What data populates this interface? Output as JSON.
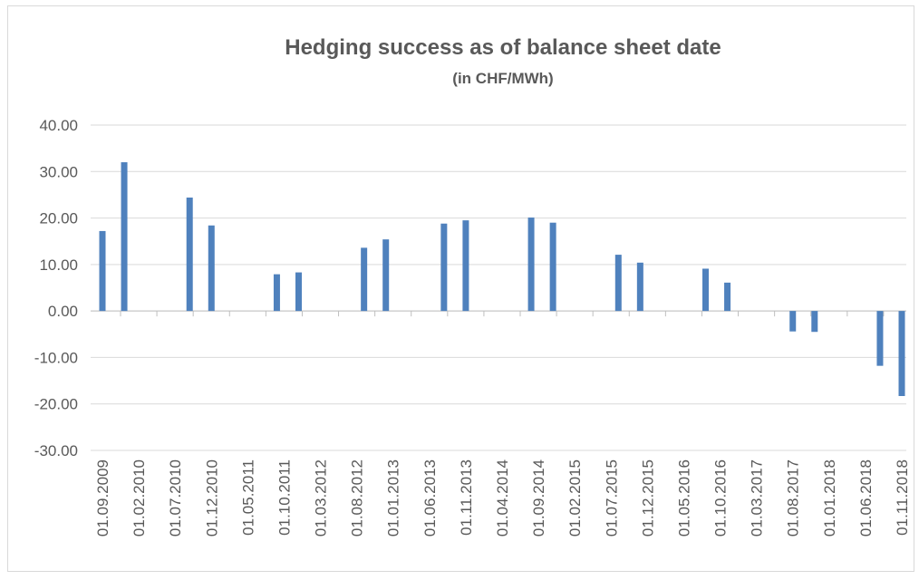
{
  "chart_data": {
    "type": "bar",
    "title": "Hedging success as of balance sheet date",
    "subtitle": "(in CHF/MWh)",
    "x": [
      "01.09.2009",
      "01.12.2009",
      "01.09.2010",
      "01.12.2010",
      "01.09.2011",
      "01.12.2011",
      "01.09.2012",
      "01.12.2012",
      "01.08.2013",
      "01.11.2013",
      "01.08.2014",
      "01.11.2014",
      "01.08.2015",
      "01.11.2015",
      "01.08.2016",
      "01.11.2016",
      "01.08.2017",
      "01.11.2017",
      "01.08.2018",
      "01.11.2018"
    ],
    "values": [
      17.2,
      32.0,
      24.4,
      18.4,
      7.9,
      8.3,
      13.6,
      15.4,
      18.8,
      19.5,
      20.1,
      19.0,
      12.1,
      10.4,
      9.1,
      6.1,
      -4.4,
      -4.5,
      -11.8,
      -18.3
    ],
    "color": "#4f81bd",
    "xlim": [
      "01.09.2009",
      "01.11.2018"
    ],
    "xticks": [
      "01.09.2009",
      "01.02.2010",
      "01.07.2010",
      "01.12.2010",
      "01.05.2011",
      "01.10.2011",
      "01.03.2012",
      "01.08.2012",
      "01.01.2013",
      "01.06.2013",
      "01.11.2013",
      "01.04.2014",
      "01.09.2014",
      "01.02.2015",
      "01.07.2015",
      "01.12.2015",
      "01.05.2016",
      "01.10.2016",
      "01.03.2017",
      "01.08.2017",
      "01.01.2018",
      "01.06.2018",
      "01.11.2018"
    ],
    "ylim": [
      -30,
      40
    ],
    "yticks": [
      {
        "value": -30,
        "label": "-30.00"
      },
      {
        "value": -20,
        "label": "-20.00"
      },
      {
        "value": -10,
        "label": "-10.00"
      },
      {
        "value": 0,
        "label": "0.00"
      },
      {
        "value": 10,
        "label": "10.00"
      },
      {
        "value": 20,
        "label": "20.00"
      },
      {
        "value": 30,
        "label": "30.00"
      },
      {
        "value": 40,
        "label": "40.00"
      }
    ],
    "grid": true
  }
}
